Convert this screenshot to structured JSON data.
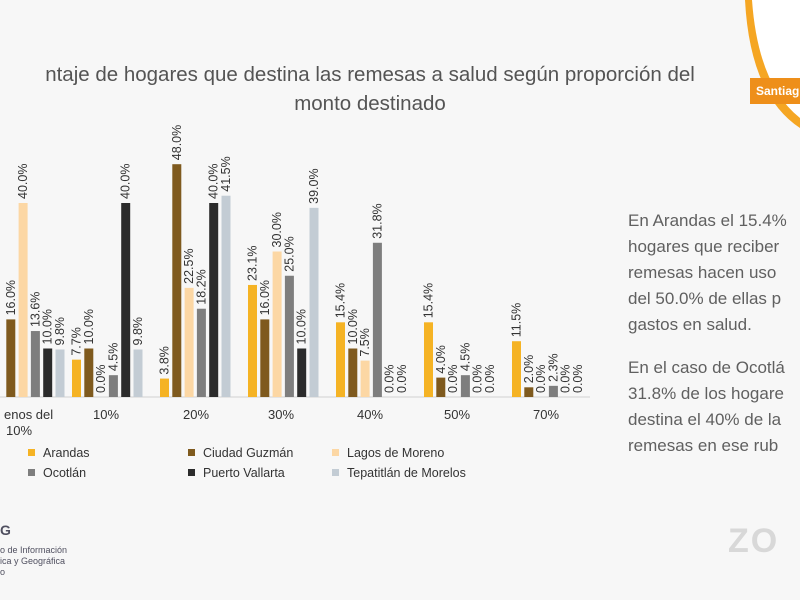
{
  "slide": {
    "title_line1": "ntaje de hogares que destina las remesas a salud según proporción del",
    "title_line2": "monto destinado",
    "corner_label": "Santiag",
    "side_paragraphs": [
      [
        "En Arandas el 15.4%",
        "hogares que reciber",
        "remesas hacen uso",
        "del 50.0% de ellas p",
        "gastos en salud."
      ],
      [
        "En el caso de Ocotlá",
        "31.8% de los hogare",
        "destina el 40% de la",
        "remesas en ese rub"
      ]
    ],
    "logo_mark": "G",
    "logo_lines": [
      "o de Información",
      "ica y Geográfica",
      "o"
    ],
    "watermark": "ZO"
  },
  "chart_data": {
    "type": "bar",
    "categories": [
      "enos del 10%",
      "10%",
      "20%",
      "30%",
      "40%",
      "50%",
      "70%"
    ],
    "series": [
      {
        "name": "Arandas",
        "color": "#f5b324",
        "values": [
          null,
          7.7,
          3.8,
          23.1,
          15.4,
          15.4,
          11.5
        ]
      },
      {
        "name": "Ciudad Guzmán",
        "color": "#7f5a1e",
        "values": [
          16.0,
          10.0,
          48.0,
          16.0,
          10.0,
          4.0,
          2.0
        ]
      },
      {
        "name": "Lagos de Moreno",
        "color": "#fcd7a4",
        "values": [
          40.0,
          0.0,
          22.5,
          30.0,
          7.5,
          0.0,
          0.0
        ]
      },
      {
        "name": "Ocotlán",
        "color": "#7e7e7e",
        "values": [
          13.6,
          4.5,
          18.2,
          25.0,
          31.8,
          4.5,
          2.3
        ]
      },
      {
        "name": "Puerto Vallarta",
        "color": "#2b2b2b",
        "values": [
          10.0,
          40.0,
          40.0,
          10.0,
          0.0,
          0.0,
          0.0
        ]
      },
      {
        "name": "Tepatitlán de Morelos",
        "color": "#c3ccd4",
        "values": [
          9.8,
          9.8,
          41.5,
          39.0,
          0.0,
          0.0,
          0.0
        ]
      }
    ],
    "labels": [
      [
        null,
        "7.7%",
        "3.8%",
        "23.1%",
        "15.4%",
        "15.4%",
        "11.5%"
      ],
      [
        "16.0%",
        "10.0%",
        "48.0%",
        "16.0%",
        "10.0%",
        "4.0%",
        "2.0%"
      ],
      [
        "40.0%",
        "0.0%",
        "22.5%",
        "30.0%",
        "7.5%",
        "0.0%",
        "0.0%"
      ],
      [
        "13.6%",
        "4.5%",
        "18.2%",
        "25.0%",
        "31.8%",
        "4.5%",
        "2.3%"
      ],
      [
        "10.0%",
        "40.0%",
        "40.0%",
        "10.0%",
        "0.0%",
        "0.0%",
        "0.0%"
      ],
      [
        "9.8%",
        "9.8%",
        "41.5%",
        "39.0%",
        "0.0%",
        "0.0%",
        "0.0%"
      ]
    ],
    "ylim": [
      0,
      50
    ],
    "grid": false,
    "legend_position": "bottom"
  }
}
